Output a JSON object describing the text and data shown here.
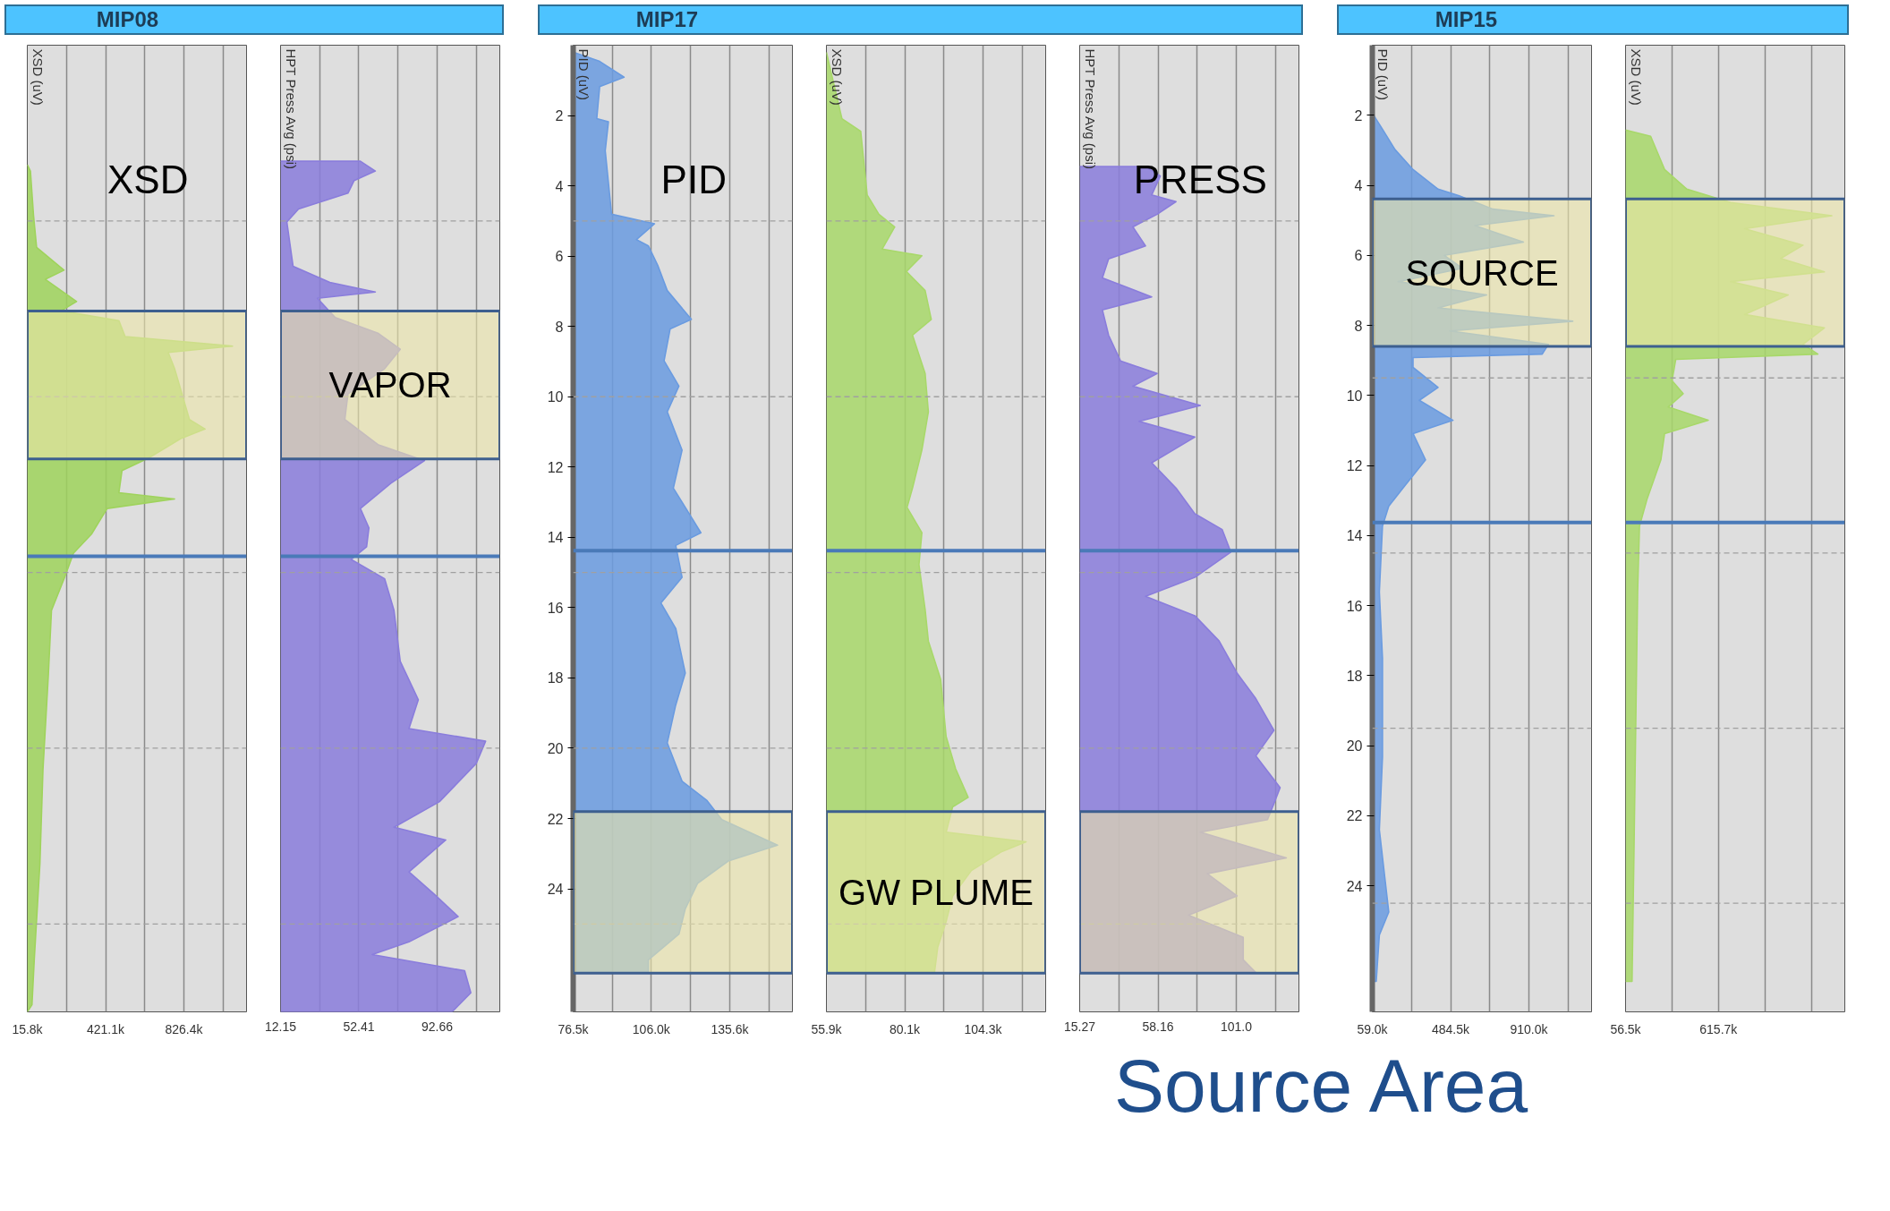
{
  "chart_data": [
    {
      "type": "area",
      "title": "MIP08",
      "ylabel": "XSD (uV)",
      "orientation": "horizontal",
      "tick_labels": "x",
      "grid": "x",
      "xlim": [
        15800,
        1150640
      ],
      "ylim": [
        27.5,
        0
      ],
      "yticks": [
        2,
        4,
        6,
        8,
        10,
        12,
        14,
        16,
        18,
        20,
        22,
        24
      ],
      "xticks": [
        {
          "value": 15800,
          "label": "15.8k"
        },
        {
          "value": 218450,
          "label": null
        },
        {
          "value": 421100,
          "label": "421.1k"
        },
        {
          "value": 623750,
          "label": null
        },
        {
          "value": 826400,
          "label": "826.4k"
        },
        {
          "value": 1029050,
          "label": null
        }
      ],
      "series": [
        {
          "color": "#9fd35c",
          "x": [
            3.4,
            3.58,
            4.84,
            5.75,
            6.4,
            6.66,
            7.29,
            7.56,
            7.84,
            8.29,
            8.56,
            8.74,
            9.2,
            10.65,
            10.92,
            11.19,
            11.73,
            12.1,
            12.73,
            12.91,
            13.18,
            13.91,
            14.45,
            15.18,
            16.08,
            17.9,
            20.6,
            23.3,
            26.0,
            27.3,
            27.5
          ],
          "values": [
            15800,
            32000,
            48000,
            64000,
            206000,
            109000,
            271000,
            190000,
            490000,
            522000,
            1078000,
            745000,
            778000,
            855000,
            936000,
            810000,
            648000,
            506000,
            490000,
            778000,
            429000,
            348000,
            255000,
            206000,
            141000,
            125000,
            97000,
            81000,
            52000,
            40000,
            15800
          ]
        }
      ],
      "annotations": [
        "XSD"
      ],
      "ref_lines": [
        {
          "axis": "y",
          "value": 5,
          "color": "#a0a0a0",
          "line_style": "dashed"
        },
        {
          "axis": "y",
          "value": 10,
          "color": "#a0a0a0",
          "line_style": "dashed"
        },
        {
          "axis": "y",
          "value": 15,
          "color": "#a0a0a0",
          "line_style": "dashed"
        },
        {
          "axis": "y",
          "value": 20,
          "color": "#a0a0a0",
          "line_style": "dashed"
        },
        {
          "axis": "y",
          "value": 25,
          "color": "#a0a0a0",
          "line_style": "dashed"
        },
        {
          "axis": "y",
          "value": 14.54,
          "color": "#4a7ab8",
          "line_style": "solid"
        }
      ],
      "bands": [
        {
          "axis": "y",
          "from": 7.56,
          "to": 11.77,
          "color": "#ece6a8"
        }
      ]
    },
    {
      "type": "area",
      "ylabel": "HPT Press Avg (psi)",
      "orientation": "horizontal",
      "tick_labels": "x",
      "grid": "x",
      "xlim": [
        12.15,
        124.9
      ],
      "ylim": [
        27.5,
        0
      ],
      "yticks": [
        2,
        4,
        6,
        8,
        10,
        12,
        14,
        16,
        18,
        20,
        22,
        24
      ],
      "xticks": [
        12.15,
        {
          "value": 32.28,
          "label": null
        },
        52.41,
        {
          "value": 72.54,
          "label": null
        },
        92.66,
        {
          "value": 112.79,
          "label": null
        }
      ],
      "series": [
        {
          "color": "#8a7ddc",
          "x": [
            3.3,
            3.3,
            3.58,
            3.85,
            4.21,
            4.66,
            5.03,
            6.29,
            6.75,
            7.02,
            7.2,
            7.75,
            8.2,
            8.65,
            9.2,
            9.92,
            10.65,
            11.37,
            11.82,
            12.46,
            13.18,
            13.73,
            14.27,
            14.63,
            15.18,
            16.08,
            17.53,
            18.62,
            19.44,
            19.8,
            20.43,
            21.52,
            22.25,
            22.61,
            23.52,
            24.15,
            24.79,
            25.51,
            25.87,
            26.33,
            26.96,
            27.5,
            27.5
          ],
          "values": [
            12.15,
            53.2,
            60.9,
            50.0,
            46.8,
            21.4,
            15.4,
            18.6,
            37.5,
            60.9,
            31.1,
            40.3,
            62.5,
            73.7,
            65.7,
            46.8,
            45.2,
            62.5,
            86.2,
            68.9,
            53.2,
            57.6,
            56.4,
            48.4,
            65.7,
            70.5,
            73.7,
            83.0,
            78.2,
            117.6,
            112.8,
            93.9,
            70.5,
            97.1,
            78.2,
            91.1,
            103.5,
            78.2,
            59.3,
            106.8,
            110.0,
            100.3,
            12.15
          ]
        }
      ],
      "ref_lines": [
        {
          "axis": "y",
          "value": 5,
          "color": "#a0a0a0",
          "line_style": "dashed"
        },
        {
          "axis": "y",
          "value": 10,
          "color": "#a0a0a0",
          "line_style": "dashed"
        },
        {
          "axis": "y",
          "value": 15,
          "color": "#a0a0a0",
          "line_style": "dashed"
        },
        {
          "axis": "y",
          "value": 20,
          "color": "#a0a0a0",
          "line_style": "dashed"
        },
        {
          "axis": "y",
          "value": 25,
          "color": "#a0a0a0",
          "line_style": "dashed"
        },
        {
          "axis": "y",
          "value": 14.54,
          "color": "#4a7ab8",
          "line_style": "solid"
        }
      ],
      "bands": [
        {
          "axis": "y",
          "from": 7.56,
          "to": 11.77,
          "label": "VAPOR",
          "color": "#ece6a8"
        }
      ]
    },
    {
      "type": "area",
      "title": "MIP17",
      "ylabel": "PID (uV)",
      "orientation": "horizontal",
      "grid": "x",
      "xlim": [
        76500,
        159240
      ],
      "ylim": [
        27.5,
        0
      ],
      "xticks": [
        {
          "value": 76500,
          "label": "76.5k"
        },
        {
          "value": 91250,
          "label": null
        },
        {
          "value": 106000,
          "label": "106.0k"
        },
        {
          "value": 120800,
          "label": null
        },
        {
          "value": 135600,
          "label": "135.6k"
        },
        {
          "value": 150400,
          "label": null
        }
      ],
      "yticks": [
        2,
        4,
        6,
        8,
        10,
        12,
        14,
        16,
        18,
        20,
        22,
        24
      ],
      "series": [
        {
          "color": "#6a9be0",
          "x": [
            0.2,
            0.46,
            0.91,
            1.18,
            2.09,
            2.18,
            3.0,
            4.81,
            5.08,
            5.53,
            5.71,
            6.26,
            6.98,
            7.8,
            8.07,
            8.98,
            9.7,
            10.43,
            11.52,
            12.6,
            13.87,
            14.23,
            15.14,
            15.87,
            16.59,
            17.86,
            18.77,
            19.85,
            20.94,
            21.49,
            22.03,
            22.76,
            23.21,
            23.84,
            24.57,
            25.29,
            26.02,
            26.38,
            26.38
          ],
          "values": [
            76500,
            86500,
            95700,
            86500,
            85400,
            89800,
            88600,
            91000,
            107200,
            100400,
            104900,
            108400,
            112000,
            121100,
            113100,
            110800,
            116400,
            112000,
            117600,
            114300,
            124700,
            115200,
            117600,
            109600,
            115200,
            118800,
            115200,
            112000,
            117600,
            127000,
            132600,
            153600,
            135000,
            123500,
            118800,
            116400,
            104900,
            104900,
            76500
          ]
        }
      ],
      "annotations": [
        "PID"
      ],
      "ref_lines": [
        {
          "axis": "y",
          "value": 5,
          "color": "#a0a0a0",
          "line_style": "dashed"
        },
        {
          "axis": "y",
          "value": 10,
          "color": "#a0a0a0",
          "line_style": "dashed"
        },
        {
          "axis": "y",
          "value": 15,
          "color": "#a0a0a0",
          "line_style": "dashed"
        },
        {
          "axis": "y",
          "value": 20,
          "color": "#a0a0a0",
          "line_style": "dashed"
        },
        {
          "axis": "y",
          "value": 25,
          "color": "#a0a0a0",
          "line_style": "dashed"
        },
        {
          "axis": "y",
          "value": 14.38,
          "color": "#4a7ab8",
          "line_style": "solid"
        }
      ],
      "bands": [
        {
          "axis": "y",
          "from": 21.8,
          "to": 26.4,
          "color": "#ece6a8"
        }
      ]
    },
    {
      "type": "area",
      "ylabel": "XSD (uV)",
      "orientation": "horizontal",
      "tick_labels": "x",
      "grid": "x",
      "xlim": [
        55900,
        123660
      ],
      "ylim": [
        27.5,
        0
      ],
      "yticks": [
        2,
        4,
        6,
        8,
        10,
        12,
        14,
        16,
        18,
        20,
        22,
        24
      ],
      "xticks": [
        {
          "value": 55900,
          "label": "55.9k"
        },
        {
          "value": 68000,
          "label": null
        },
        {
          "value": 80100,
          "label": "80.1k"
        },
        {
          "value": 92200,
          "label": null
        },
        {
          "value": 104300,
          "label": "104.3k"
        },
        {
          "value": 116400,
          "label": null
        }
      ],
      "series": [
        {
          "color": "#a8d86a",
          "x": [
            0.2,
            2.09,
            2.45,
            4.26,
            4.81,
            5.17,
            5.8,
            5.99,
            6.44,
            6.98,
            7.8,
            8.25,
            9.34,
            10.43,
            11.52,
            12.6,
            13.15,
            13.87,
            14.78,
            16.05,
            16.95,
            18.04,
            19.67,
            20.58,
            21.4,
            21.67,
            22.39,
            22.66,
            22.94,
            23.48,
            24.2,
            24.93,
            25.66,
            26.38,
            26.38
          ],
          "values": [
            55900,
            60700,
            66500,
            68500,
            72100,
            77000,
            73100,
            85400,
            80600,
            86400,
            88300,
            82500,
            86400,
            87400,
            85400,
            82500,
            80800,
            85400,
            84500,
            86400,
            87400,
            91200,
            92900,
            95800,
            99700,
            94900,
            92900,
            117600,
            110100,
            100700,
            94900,
            92900,
            90300,
            89300,
            55900
          ]
        }
      ],
      "ref_lines": [
        {
          "axis": "y",
          "value": 5,
          "color": "#a0a0a0",
          "line_style": "dashed"
        },
        {
          "axis": "y",
          "value": 10,
          "color": "#a0a0a0",
          "line_style": "dashed"
        },
        {
          "axis": "y",
          "value": 15,
          "color": "#a0a0a0",
          "line_style": "dashed"
        },
        {
          "axis": "y",
          "value": 20,
          "color": "#a0a0a0",
          "line_style": "dashed"
        },
        {
          "axis": "y",
          "value": 25,
          "color": "#a0a0a0",
          "line_style": "dashed"
        },
        {
          "axis": "y",
          "value": 14.38,
          "color": "#4a7ab8",
          "line_style": "solid"
        }
      ],
      "bands": [
        {
          "axis": "y",
          "from": 21.8,
          "to": 26.4,
          "label": "GW PLUME",
          "color": "#ece6a8"
        }
      ]
    },
    {
      "type": "area",
      "ylabel": "HPT Press Avg (psi)",
      "orientation": "horizontal",
      "tick_labels": "x",
      "grid": "x",
      "xlim": [
        15.27,
        135.3
      ],
      "ylim": [
        27.5,
        0
      ],
      "yticks": [
        2,
        4,
        6,
        8,
        10,
        12,
        14,
        16,
        18,
        20,
        22,
        24
      ],
      "xticks": [
        15.27,
        {
          "value": 36.7,
          "label": null
        },
        58.16,
        {
          "value": 79.6,
          "label": null
        },
        {
          "value": 101.0,
          "label": "101.0"
        },
        {
          "value": 122.4,
          "label": null
        }
      ],
      "series": [
        {
          "color": "#8a7ddc",
          "x": [
            3.45,
            3.45,
            3.72,
            4.26,
            4.45,
            4.81,
            5.17,
            5.71,
            6.08,
            6.62,
            7.16,
            7.53,
            8.25,
            8.98,
            9.34,
            9.7,
            10.25,
            10.7,
            11.15,
            11.88,
            12.6,
            13.33,
            13.78,
            14.42,
            15.14,
            15.68,
            16.23,
            16.95,
            17.86,
            18.59,
            19.49,
            20.22,
            21.12,
            21.58,
            22.03,
            22.39,
            23.12,
            23.57,
            24.2,
            24.75,
            25.38,
            26.02,
            26.38,
            26.38
          ],
          "values": [
            15.27,
            51.3,
            59.4,
            54.7,
            68.0,
            57.7,
            44.4,
            51.3,
            31.1,
            27.7,
            54.7,
            27.7,
            31.1,
            37.6,
            57.7,
            44.4,
            81.3,
            47.8,
            78.3,
            54.7,
            68.0,
            78.3,
            93.3,
            98.0,
            78.3,
            51.3,
            78.3,
            91.6,
            101.4,
            111.7,
            121.6,
            111.7,
            125.0,
            121.6,
            118.1,
            81.3,
            128.4,
            85.1,
            101.4,
            74.8,
            104.8,
            104.8,
            111.7,
            15.27
          ]
        }
      ],
      "annotations": [
        "PRESS"
      ],
      "ref_lines": [
        {
          "axis": "y",
          "value": 5,
          "color": "#a0a0a0",
          "line_style": "dashed"
        },
        {
          "axis": "y",
          "value": 10,
          "color": "#a0a0a0",
          "line_style": "dashed"
        },
        {
          "axis": "y",
          "value": 15,
          "color": "#a0a0a0",
          "line_style": "dashed"
        },
        {
          "axis": "y",
          "value": 20,
          "color": "#a0a0a0",
          "line_style": "dashed"
        },
        {
          "axis": "y",
          "value": 25,
          "color": "#a0a0a0",
          "line_style": "dashed"
        },
        {
          "axis": "y",
          "value": 14.38,
          "color": "#4a7ab8",
          "line_style": "solid"
        }
      ],
      "bands": [
        {
          "axis": "y",
          "from": 21.8,
          "to": 26.4,
          "color": "#ece6a8"
        }
      ]
    },
    {
      "type": "area",
      "title": "MIP15",
      "ylabel": "PID (uV)",
      "orientation": "horizontal",
      "grid": "x",
      "xlim": [
        59000,
        1250400
      ],
      "ylim": [
        27.6,
        0
      ],
      "xticks": [
        {
          "value": 59000,
          "label": "59.0k"
        },
        {
          "value": 271750,
          "label": null
        },
        {
          "value": 484500,
          "label": "484.5k"
        },
        {
          "value": 697250,
          "label": null
        },
        {
          "value": 910000,
          "label": "910.0k"
        },
        {
          "value": 1122750,
          "label": null
        }
      ],
      "yticks": [
        2,
        4,
        6,
        8,
        10,
        12,
        14,
        16,
        18,
        20,
        22,
        24
      ],
      "series": [
        {
          "color": "#6a9be0",
          "x": [
            1.94,
            2.4,
            2.98,
            3.55,
            4.11,
            4.3,
            4.68,
            4.87,
            5.15,
            5.62,
            6.0,
            6.37,
            6.75,
            7.13,
            7.5,
            7.88,
            8.16,
            8.54,
            8.82,
            8.92,
            9.2,
            9.77,
            10.14,
            10.71,
            11.09,
            11.84,
            12.59,
            13.16,
            13.73,
            15.61,
            17.5,
            20.32,
            22.4,
            24.75,
            25.41,
            26.73,
            26.73
          ],
          "values": [
            59000,
            114300,
            182400,
            280300,
            416400,
            531300,
            714300,
            1046200,
            616400,
            880200,
            450500,
            548300,
            199400,
            680200,
            416400,
            1148300,
            480200,
            1016400,
            982300,
            280300,
            280300,
            416400,
            314300,
            497300,
            280300,
            348300,
            233500,
            148400,
            114300,
            97300,
            114300,
            114300,
            97300,
            148400,
            97300,
            80300,
            59000
          ]
        }
      ],
      "ref_lines": [
        {
          "axis": "y",
          "value": 9.5,
          "color": "#a0a0a0",
          "line_style": "dashed"
        },
        {
          "axis": "y",
          "value": 14.5,
          "color": "#a0a0a0",
          "line_style": "dashed"
        },
        {
          "axis": "y",
          "value": 19.5,
          "color": "#a0a0a0",
          "line_style": "dashed"
        },
        {
          "axis": "y",
          "value": 24.5,
          "color": "#a0a0a0",
          "line_style": "dashed"
        },
        {
          "axis": "y",
          "value": 13.63,
          "color": "#4a7ab8",
          "line_style": "solid"
        }
      ],
      "bands": [
        {
          "axis": "y",
          "from": 4.39,
          "to": 8.6,
          "label": "SOURCE",
          "color": "#ece6a8"
        }
      ]
    },
    {
      "type": "area",
      "ylabel": "XSD (uV)",
      "subtitle": "Source Area",
      "orientation": "horizontal",
      "tick_labels": "x",
      "grid": "x",
      "xlim": [
        56500,
        1376200
      ],
      "ylim": [
        27.6,
        0
      ],
      "yticks": [
        2,
        4,
        6,
        8,
        10,
        12,
        14,
        16,
        18,
        20,
        22,
        24
      ],
      "xticks": [
        {
          "value": 56500,
          "label": "56.5k"
        },
        {
          "value": 336100,
          "label": null
        },
        {
          "value": 615700,
          "label": "615.7k"
        },
        {
          "value": 895300,
          "label": null
        },
        {
          "value": 1174900,
          "label": null
        }
      ],
      "series": [
        {
          "color": "#a8d86a",
          "x": [
            2.42,
            2.6,
            3.55,
            4.11,
            4.49,
            4.87,
            5.24,
            5.71,
            6.09,
            6.47,
            6.75,
            7.13,
            7.69,
            8.07,
            8.54,
            8.82,
            8.97,
            9.58,
            9.95,
            10.33,
            10.71,
            11.09,
            11.84,
            12.97,
            13.73,
            15.61,
            19.38,
            23.15,
            26.73,
            26.73
          ],
          "values": [
            56500,
            207500,
            291400,
            425600,
            688400,
            1297900,
            772300,
            1124600,
            990400,
            1253200,
            688400,
            1035100,
            772300,
            1253200,
            1124600,
            1214000,
            358500,
            336100,
            403200,
            313700,
            554200,
            291400,
            269000,
            185100,
            140400,
            129200,
            118000,
            106800,
            95600,
            56500
          ]
        }
      ],
      "ref_lines": [
        {
          "axis": "y",
          "value": 9.5,
          "color": "#a0a0a0",
          "line_style": "dashed"
        },
        {
          "axis": "y",
          "value": 14.5,
          "color": "#a0a0a0",
          "line_style": "dashed"
        },
        {
          "axis": "y",
          "value": 19.5,
          "color": "#a0a0a0",
          "line_style": "dashed"
        },
        {
          "axis": "y",
          "value": 24.5,
          "color": "#a0a0a0",
          "line_style": "dashed"
        },
        {
          "axis": "y",
          "value": 13.63,
          "color": "#4a7ab8",
          "line_style": "solid"
        }
      ],
      "bands": [
        {
          "axis": "y",
          "from": 4.39,
          "to": 8.6,
          "color": "#ece6a8"
        }
      ]
    }
  ]
}
